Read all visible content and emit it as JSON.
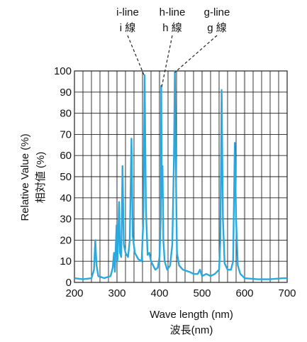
{
  "chart_data": {
    "type": "line",
    "xlabel": "Wave length (nm)",
    "xlabel_jp": "波長(nm)",
    "ylabel": "Relative Value (%)",
    "ylabel_jp": "相対値 (%)",
    "xlim": [
      200,
      700
    ],
    "ylim": [
      0,
      100
    ],
    "x_ticks": [
      200,
      300,
      400,
      500,
      600,
      700
    ],
    "y_ticks": [
      0,
      10,
      20,
      30,
      40,
      50,
      60,
      70,
      80,
      90,
      100
    ],
    "grid": true,
    "line_color": "#29a9e1",
    "annotations": [
      {
        "label": "i-line",
        "label_jp": "i 線",
        "x": 365,
        "y": 98
      },
      {
        "label": "h-line",
        "label_jp": "h 線",
        "x": 405,
        "y": 93
      },
      {
        "label": "g-line",
        "label_jp": "g 線",
        "x": 436,
        "y": 100
      }
    ],
    "series": [
      {
        "values": [
          [
            200,
            2
          ],
          [
            220,
            1.5
          ],
          [
            240,
            2
          ],
          [
            246,
            6
          ],
          [
            249,
            20
          ],
          [
            252,
            8
          ],
          [
            256,
            3
          ],
          [
            270,
            2
          ],
          [
            285,
            3
          ],
          [
            290,
            7
          ],
          [
            293,
            14
          ],
          [
            295,
            5
          ],
          [
            297,
            16
          ],
          [
            299,
            27
          ],
          [
            301,
            10
          ],
          [
            303,
            22
          ],
          [
            305,
            38
          ],
          [
            307,
            14
          ],
          [
            310,
            12
          ],
          [
            313,
            55
          ],
          [
            316,
            18
          ],
          [
            320,
            14
          ],
          [
            326,
            12
          ],
          [
            330,
            20
          ],
          [
            334,
            68
          ],
          [
            337,
            22
          ],
          [
            342,
            14
          ],
          [
            350,
            11
          ],
          [
            358,
            10
          ],
          [
            362,
            30
          ],
          [
            365,
            98
          ],
          [
            368,
            35
          ],
          [
            372,
            13
          ],
          [
            376,
            14
          ],
          [
            380,
            10
          ],
          [
            385,
            8
          ],
          [
            390,
            6
          ],
          [
            396,
            7
          ],
          [
            400,
            12
          ],
          [
            403,
            30
          ],
          [
            404,
            93
          ],
          [
            405.5,
            40
          ],
          [
            407,
            55
          ],
          [
            409,
            20
          ],
          [
            412,
            10
          ],
          [
            418,
            6
          ],
          [
            425,
            8
          ],
          [
            430,
            18
          ],
          [
            434,
            60
          ],
          [
            436,
            100
          ],
          [
            438,
            60
          ],
          [
            441,
            14
          ],
          [
            446,
            8
          ],
          [
            455,
            6
          ],
          [
            470,
            5
          ],
          [
            480,
            4
          ],
          [
            490,
            4
          ],
          [
            495,
            6
          ],
          [
            500,
            3
          ],
          [
            510,
            4
          ],
          [
            520,
            3
          ],
          [
            530,
            4
          ],
          [
            540,
            6
          ],
          [
            543,
            20
          ],
          [
            546,
            91
          ],
          [
            549,
            30
          ],
          [
            553,
            9
          ],
          [
            560,
            6
          ],
          [
            568,
            6
          ],
          [
            573,
            10
          ],
          [
            577,
            66
          ],
          [
            580,
            30
          ],
          [
            584,
            8
          ],
          [
            590,
            4
          ],
          [
            600,
            2
          ],
          [
            630,
            1.5
          ],
          [
            660,
            1.5
          ],
          [
            690,
            2
          ],
          [
            700,
            2
          ]
        ]
      }
    ]
  }
}
